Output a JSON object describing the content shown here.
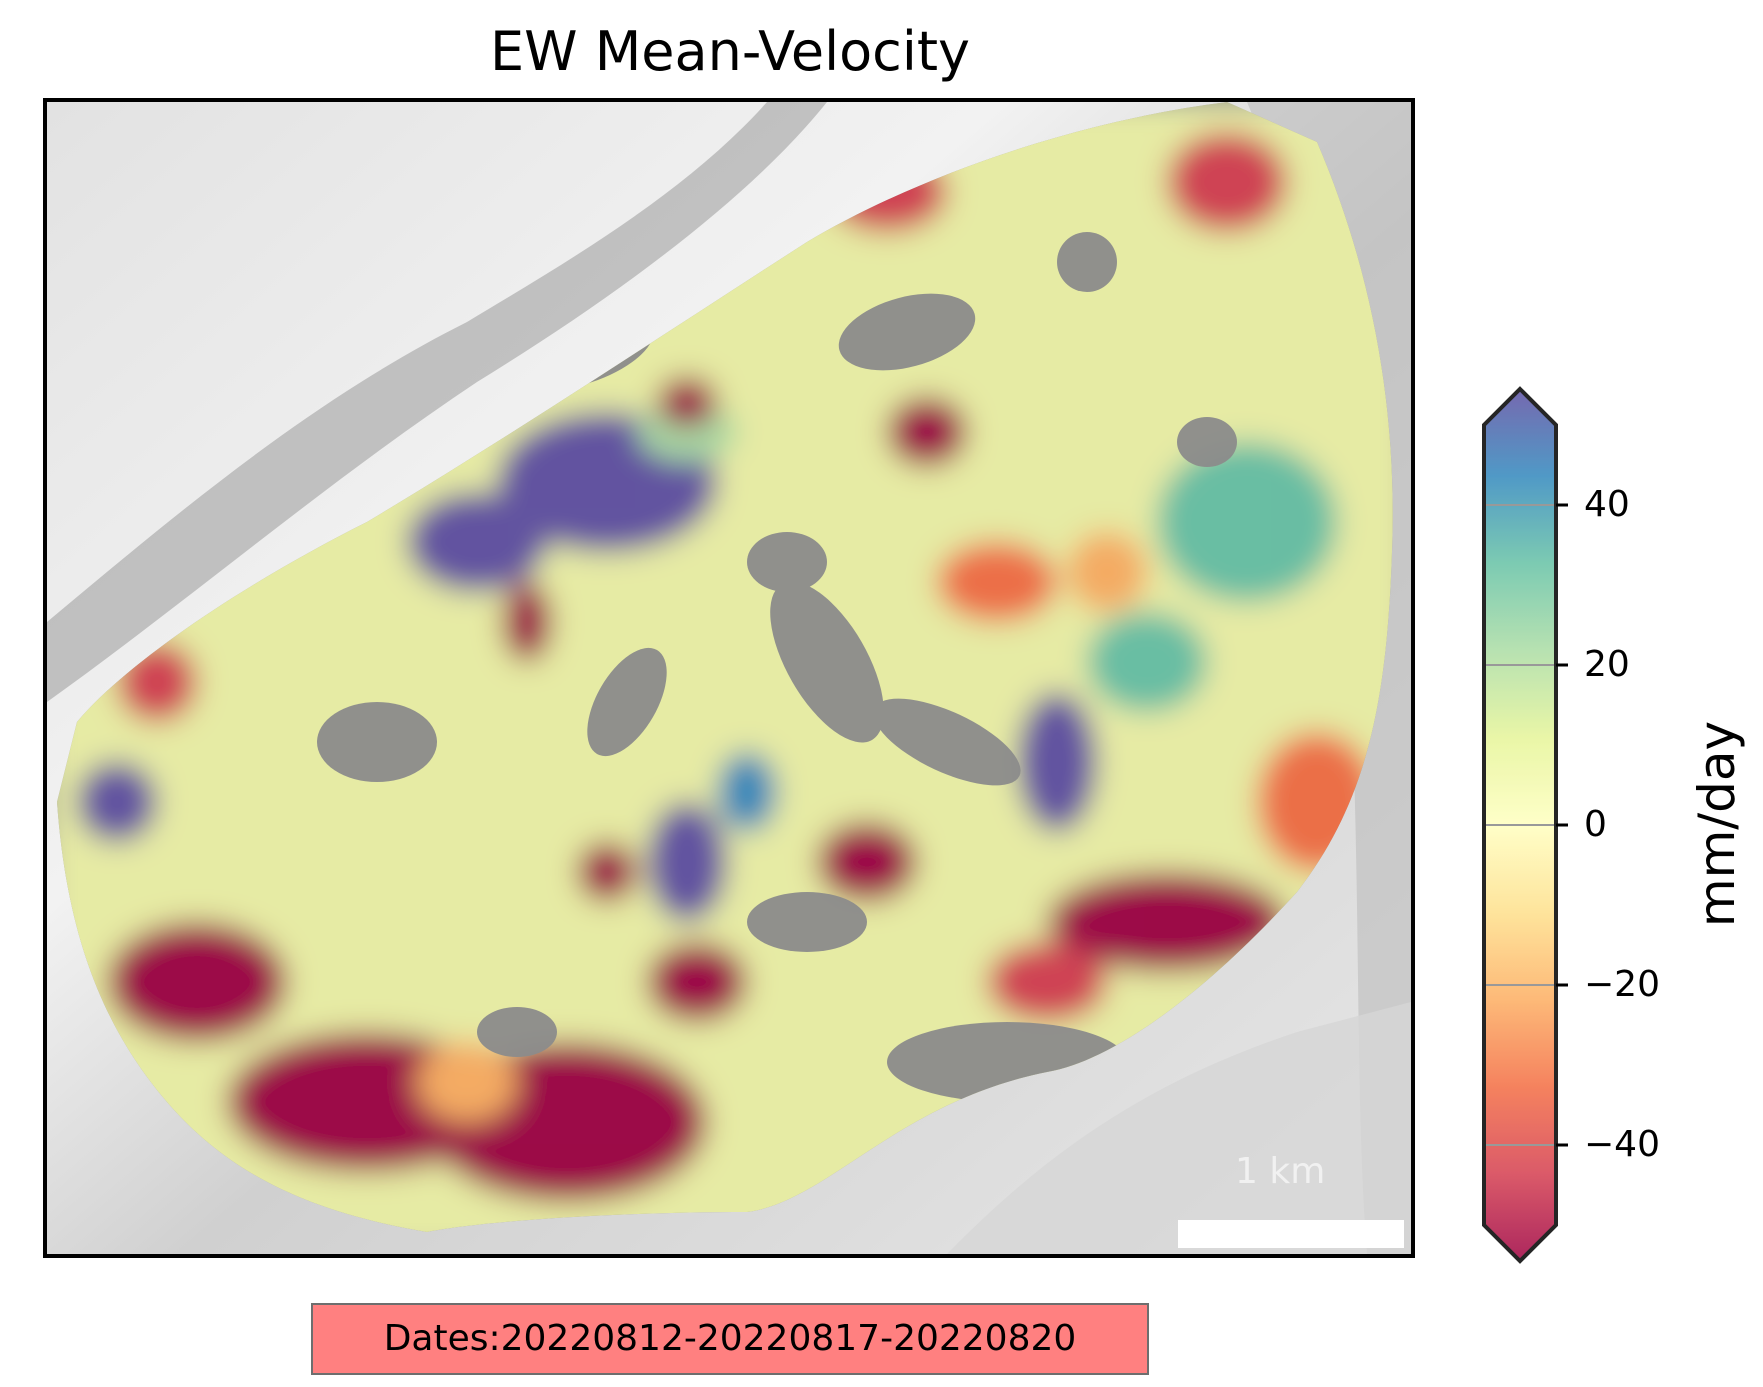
{
  "title": "EW Mean-Velocity",
  "map": {
    "scalebar_label": "1 km",
    "basemap": "grayscale hillshade relief",
    "overlay": "EW mean-velocity field (Spectral colormap)"
  },
  "colorbar": {
    "label": "mm/day",
    "ticks": [
      "40",
      "20",
      "0",
      "−20",
      "−40"
    ],
    "tick_values": [
      40,
      20,
      0,
      -20,
      -40
    ],
    "range": [
      -50,
      50
    ],
    "extend": "both",
    "colors": [
      "#9e0142",
      "#d53e4f",
      "#f46d43",
      "#fdae61",
      "#fee08b",
      "#ffffbf",
      "#e6f598",
      "#abdda4",
      "#66c2a5",
      "#3288bd",
      "#5e4fa2"
    ]
  },
  "dates_box": {
    "text": "Dates:20220812-20220817-20220820",
    "background": "#ff8080"
  }
}
